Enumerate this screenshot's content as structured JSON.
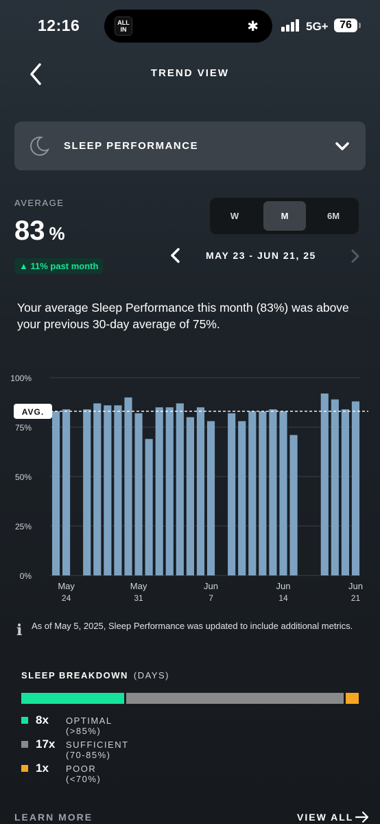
{
  "status_bar": {
    "time": "12:16",
    "island_app": "ALL IN",
    "network": "5G+",
    "battery": "76"
  },
  "header": {
    "title": "TREND VIEW",
    "back_icon": "chevron-left-icon"
  },
  "metric_selector": {
    "label": "SLEEP PERFORMANCE",
    "icon": "moon-icon",
    "dropdown_icon": "chevron-down-icon"
  },
  "average": {
    "label": "AVERAGE",
    "value": "83",
    "unit": "%",
    "delta": "▲ 11% past month"
  },
  "period_tabs": {
    "options": [
      "W",
      "M",
      "6M"
    ],
    "selected": "M"
  },
  "date_range": "MAY 23 - JUN 21, 25",
  "summary": "Your average Sleep Performance this month (83%) was above your previous 30-day average of 75%.",
  "chart_data": {
    "type": "bar",
    "y_ticks": [
      "100%",
      "75%",
      "50%",
      "25%",
      "0%"
    ],
    "ylim": [
      0,
      100
    ],
    "average_label": "AVG.",
    "average_value": 83,
    "x_tick_labels": [
      {
        "month": "May",
        "day": "24",
        "index": 1
      },
      {
        "month": "May",
        "day": "31",
        "index": 8
      },
      {
        "month": "Jun",
        "day": "7",
        "index": 15
      },
      {
        "month": "Jun",
        "day": "14",
        "index": 22
      },
      {
        "month": "Jun",
        "day": "21",
        "index": 29
      }
    ],
    "values": [
      83,
      84,
      null,
      84,
      87,
      86,
      86,
      90,
      82,
      69,
      85,
      85,
      87,
      80,
      85,
      78,
      null,
      82,
      78,
      83,
      83,
      84,
      83,
      71,
      null,
      null,
      92,
      89,
      84,
      88
    ],
    "bar_color": "#7ea3c2"
  },
  "info": {
    "icon": "info-icon",
    "text": "As of May 5, 2025, Sleep Performance was updated to include additional metrics."
  },
  "breakdown": {
    "title": "SLEEP BREAKDOWN",
    "subtitle": "(DAYS)",
    "items": [
      {
        "count": "8x",
        "label": "OPTIMAL (>85%)",
        "days": 8,
        "color": "#16e39b"
      },
      {
        "count": "17x",
        "label": "SUFFICIENT (70-85%)",
        "days": 17,
        "color": "#8a8a8a"
      },
      {
        "count": "1x",
        "label": "POOR (<70%)",
        "days": 1,
        "color": "#f5a623"
      }
    ]
  },
  "footer": {
    "learn_more": "LEARN MORE",
    "view_all": "VIEW ALL"
  }
}
